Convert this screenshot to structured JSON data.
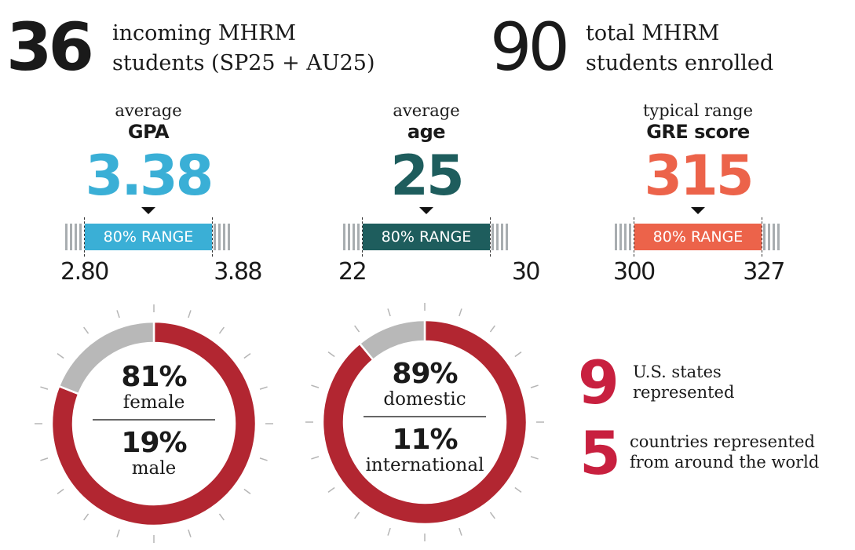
{
  "header": {
    "incoming": {
      "number": "36",
      "text_line1": "incoming MHRM",
      "text_line2": "students (SP25 + AU25)"
    },
    "total": {
      "number": "90",
      "text_line1": "total MHRM",
      "text_line2": "students enrolled"
    }
  },
  "stats": [
    {
      "label1": "average",
      "label2": "GPA",
      "value": "3.38",
      "range_label": "80% RANGE",
      "low": "2.80",
      "high": "3.88",
      "color": "#3aafd6"
    },
    {
      "label1": "average",
      "label2": "age",
      "value": "25",
      "range_label": "80% RANGE",
      "low": "22",
      "high": "30",
      "color": "#1e5d5d"
    },
    {
      "label1": "typical range",
      "label2": "GRE score",
      "value": "315",
      "range_label": "80% RANGE",
      "low": "300",
      "high": "327",
      "color": "#ec634a"
    }
  ],
  "chart_data": [
    {
      "type": "pie",
      "variant": "donut",
      "colors": [
        "#b22631",
        "#b8b8b8"
      ],
      "slices": [
        {
          "label": "female",
          "value": 81,
          "display": "81%"
        },
        {
          "label": "male",
          "value": 19,
          "display": "19%"
        }
      ]
    },
    {
      "type": "pie",
      "variant": "donut",
      "colors": [
        "#b22631",
        "#b8b8b8"
      ],
      "slices": [
        {
          "label": "domestic",
          "value": 89,
          "display": "89%"
        },
        {
          "label": "international",
          "value": 11,
          "display": "11%"
        }
      ]
    }
  ],
  "side": [
    {
      "number": "9",
      "line1": "U.S. states",
      "line2": "represented"
    },
    {
      "number": "5",
      "line1": "countries represented",
      "line2": "from around the world"
    }
  ],
  "accent": "#c8203f"
}
